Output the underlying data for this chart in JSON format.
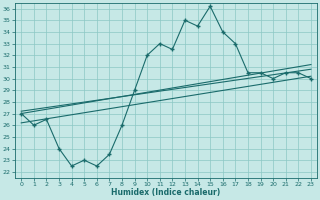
{
  "title": "",
  "xlabel": "Humidex (Indice chaleur)",
  "ylabel": "",
  "bg_color": "#c6e8e6",
  "grid_color": "#8cc8c4",
  "line_color": "#1a6b6b",
  "xlim": [
    -0.5,
    23.5
  ],
  "ylim": [
    21.5,
    36.5
  ],
  "xticks": [
    0,
    1,
    2,
    3,
    4,
    5,
    6,
    7,
    8,
    9,
    10,
    11,
    12,
    13,
    14,
    15,
    16,
    17,
    18,
    19,
    20,
    21,
    22,
    23
  ],
  "yticks": [
    22,
    23,
    24,
    25,
    26,
    27,
    28,
    29,
    30,
    31,
    32,
    33,
    34,
    35,
    36
  ],
  "main_line_x": [
    0,
    1,
    2,
    3,
    4,
    5,
    6,
    7,
    8,
    9,
    10,
    11,
    12,
    13,
    14,
    15,
    16,
    17,
    18,
    19,
    20,
    21,
    22,
    23
  ],
  "main_line_y": [
    27.0,
    26.0,
    26.5,
    24.0,
    22.5,
    23.0,
    22.5,
    23.5,
    26.0,
    29.0,
    32.0,
    33.0,
    32.5,
    35.0,
    34.5,
    36.2,
    34.0,
    33.0,
    30.5,
    30.5,
    30.0,
    30.5,
    30.5,
    30.0
  ],
  "line2_x": [
    0,
    23
  ],
  "line2_y": [
    27.2,
    30.8
  ],
  "line3_x": [
    0,
    23
  ],
  "line3_y": [
    27.0,
    31.2
  ],
  "line4_x": [
    0,
    23
  ],
  "line4_y": [
    26.2,
    30.2
  ]
}
